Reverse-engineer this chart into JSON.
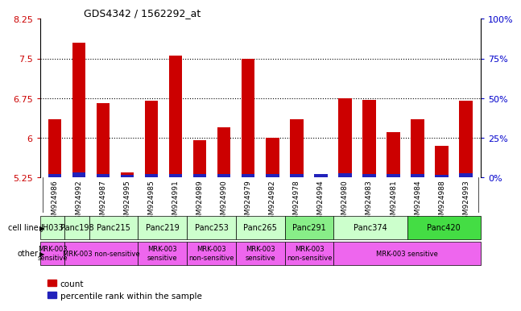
{
  "title": "GDS4342 / 1562292_at",
  "samples": [
    "GSM924986",
    "GSM924992",
    "GSM924987",
    "GSM924995",
    "GSM924985",
    "GSM924991",
    "GSM924989",
    "GSM924990",
    "GSM924979",
    "GSM924982",
    "GSM924978",
    "GSM924994",
    "GSM924980",
    "GSM924983",
    "GSM924981",
    "GSM924984",
    "GSM924988",
    "GSM924993"
  ],
  "red_values": [
    6.35,
    7.8,
    6.65,
    5.35,
    6.7,
    7.55,
    5.95,
    6.2,
    7.5,
    6.0,
    6.35,
    5.27,
    6.75,
    6.72,
    6.1,
    6.35,
    5.85,
    6.7
  ],
  "blue_values": [
    0.07,
    0.09,
    0.07,
    0.05,
    0.07,
    0.06,
    0.07,
    0.07,
    0.07,
    0.06,
    0.06,
    0.06,
    0.08,
    0.07,
    0.07,
    0.07,
    0.05,
    0.08
  ],
  "ymin": 5.25,
  "ymax": 8.25,
  "yticks": [
    5.25,
    6.0,
    6.75,
    7.5,
    8.25
  ],
  "ytick_labels": [
    "5.25",
    "6",
    "6.75",
    "7.5",
    "8.25"
  ],
  "right_ytick_labels": [
    "0%",
    "25%",
    "50%",
    "75%",
    "100%"
  ],
  "dotted_lines": [
    6.0,
    6.75,
    7.5
  ],
  "cell_line_groups": [
    {
      "label": "JH033",
      "start": 0,
      "end": 1,
      "color": "#ccffcc"
    },
    {
      "label": "Panc198",
      "start": 1,
      "end": 2,
      "color": "#ccffcc"
    },
    {
      "label": "Panc215",
      "start": 2,
      "end": 4,
      "color": "#ccffcc"
    },
    {
      "label": "Panc219",
      "start": 4,
      "end": 6,
      "color": "#ccffcc"
    },
    {
      "label": "Panc253",
      "start": 6,
      "end": 8,
      "color": "#ccffcc"
    },
    {
      "label": "Panc265",
      "start": 8,
      "end": 10,
      "color": "#ccffcc"
    },
    {
      "label": "Panc291",
      "start": 10,
      "end": 12,
      "color": "#88ee88"
    },
    {
      "label": "Panc374",
      "start": 12,
      "end": 15,
      "color": "#ccffcc"
    },
    {
      "label": "Panc420",
      "start": 15,
      "end": 18,
      "color": "#44dd44"
    }
  ],
  "other_groups": [
    {
      "label": "MRK-003\nsensitive",
      "start": 0,
      "end": 1,
      "color": "#ee66ee"
    },
    {
      "label": "MRK-003 non-sensitive",
      "start": 1,
      "end": 4,
      "color": "#ee66ee"
    },
    {
      "label": "MRK-003\nsensitive",
      "start": 4,
      "end": 6,
      "color": "#ee66ee"
    },
    {
      "label": "MRK-003\nnon-sensitive",
      "start": 6,
      "end": 8,
      "color": "#ee66ee"
    },
    {
      "label": "MRK-003\nsensitive",
      "start": 8,
      "end": 10,
      "color": "#ee66ee"
    },
    {
      "label": "MRK-003\nnon-sensitive",
      "start": 10,
      "end": 12,
      "color": "#ee66ee"
    },
    {
      "label": "MRK-003 sensitive",
      "start": 12,
      "end": 18,
      "color": "#ee66ee"
    }
  ],
  "bar_width": 0.55,
  "bar_color_red": "#cc0000",
  "bar_color_blue": "#2222bb",
  "background_color": "#ffffff",
  "plot_bg_color": "#ffffff",
  "xtick_bg_color": "#cccccc",
  "left_tick_color": "#cc0000",
  "right_tick_color": "#0000cc",
  "legend_red": "count",
  "legend_blue": "percentile rank within the sample"
}
